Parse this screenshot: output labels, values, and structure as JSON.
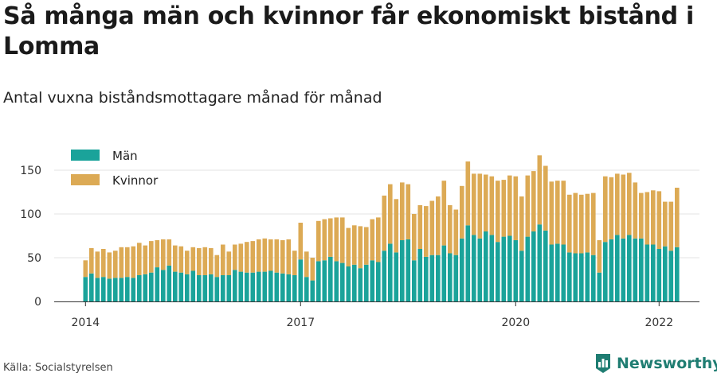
{
  "title": "Så många män och kvinnor får ekonomiskt bistånd i Lomma",
  "subtitle": "Antal vuxna biståndsmottagare månad för månad",
  "source": "Källa: Socialstyrelsen",
  "brand": {
    "name": "Newsworthy",
    "logo_icon": "newsworthy-logo-icon",
    "color": "#1f7d72"
  },
  "colors": {
    "men": "#1aa39a",
    "women": "#dcaa55",
    "grid": "#e3e3e3",
    "axis": "#333333"
  },
  "chart_data": {
    "type": "bar",
    "stacked": true,
    "x_tick_labels": [
      "2014",
      "2017",
      "2020",
      "2022"
    ],
    "x_tick_indices": [
      0,
      36,
      72,
      96
    ],
    "y_ticks": [
      0,
      50,
      100,
      150
    ],
    "ylim": [
      0,
      170
    ],
    "grid": true,
    "legend": {
      "placement": "top-left",
      "entries": [
        "Män",
        "Kvinnor"
      ]
    },
    "start": "2014-01",
    "series": [
      {
        "name": "Män",
        "values": [
          28,
          32,
          27,
          28,
          26,
          27,
          27,
          28,
          27,
          30,
          31,
          33,
          39,
          36,
          41,
          34,
          33,
          31,
          35,
          30,
          30,
          31,
          28,
          30,
          30,
          36,
          34,
          33,
          33,
          34,
          34,
          35,
          33,
          32,
          31,
          30,
          48,
          28,
          24,
          46,
          47,
          51,
          46,
          44,
          40,
          42,
          38,
          42,
          47,
          45,
          58,
          66,
          56,
          70,
          71,
          47,
          60,
          51,
          53,
          53,
          64,
          55,
          53,
          72,
          87,
          76,
          72,
          80,
          76,
          68,
          74,
          75,
          70,
          58,
          74,
          80,
          88,
          81,
          65,
          66,
          65,
          56,
          55,
          55,
          56,
          53,
          33,
          68,
          71,
          76,
          72,
          76,
          72,
          72,
          65,
          65,
          60,
          63,
          58,
          62
        ]
      },
      {
        "name": "Kvinnor",
        "values": [
          19,
          29,
          30,
          32,
          30,
          31,
          35,
          34,
          36,
          37,
          33,
          36,
          31,
          35,
          30,
          30,
          30,
          27,
          27,
          31,
          32,
          30,
          25,
          35,
          27,
          29,
          32,
          35,
          36,
          37,
          38,
          36,
          38,
          38,
          40,
          28,
          42,
          29,
          26,
          46,
          47,
          44,
          50,
          52,
          44,
          45,
          48,
          43,
          47,
          51,
          63,
          68,
          61,
          66,
          63,
          53,
          50,
          58,
          62,
          67,
          74,
          55,
          52,
          60,
          73,
          70,
          74,
          65,
          67,
          70,
          65,
          69,
          73,
          62,
          70,
          69,
          79,
          74,
          72,
          72,
          73,
          66,
          69,
          67,
          67,
          71,
          37,
          75,
          71,
          70,
          73,
          71,
          64,
          52,
          60,
          62,
          66,
          51,
          56,
          68
        ]
      }
    ]
  }
}
